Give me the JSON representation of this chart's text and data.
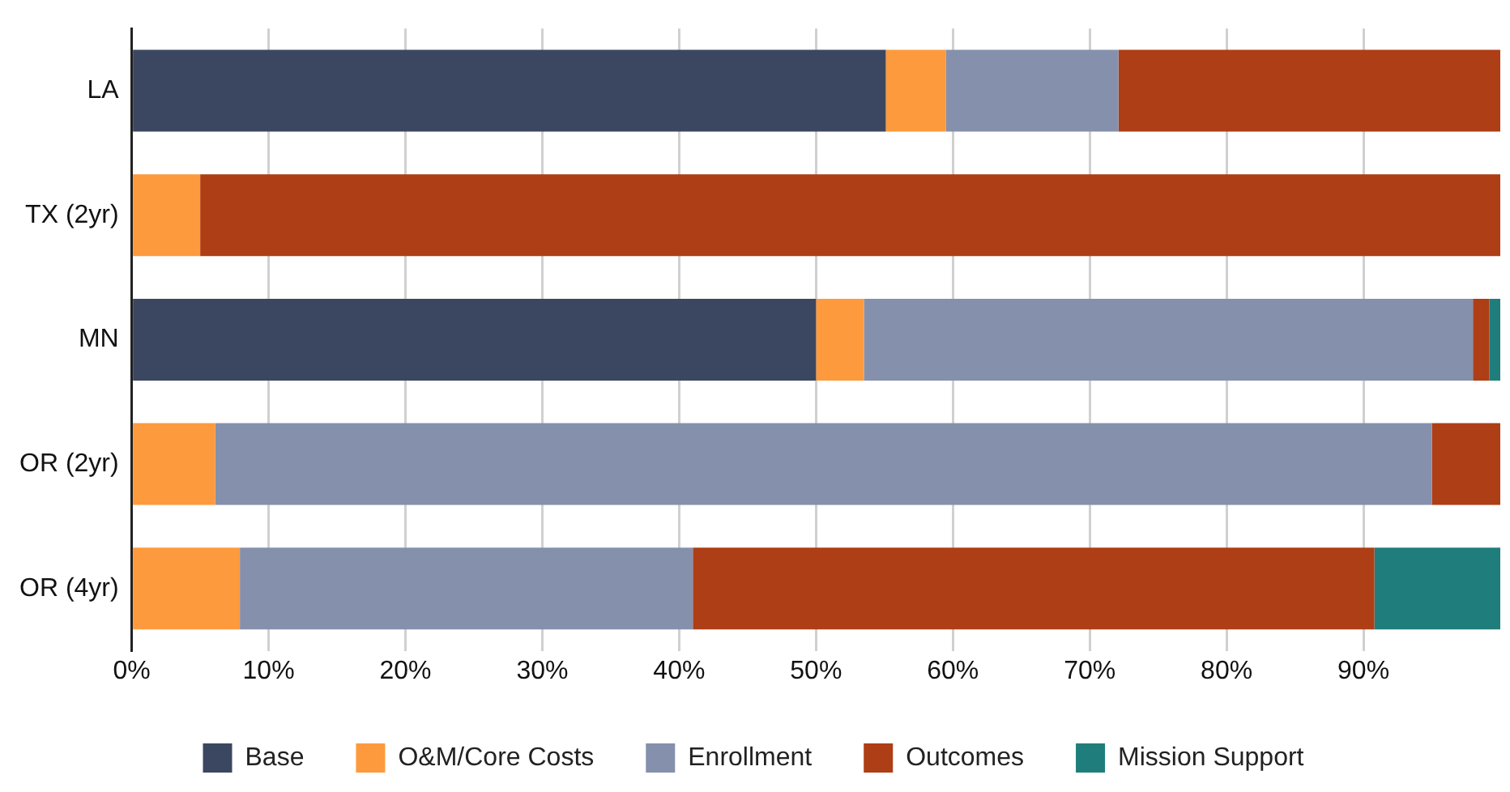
{
  "chart_data": {
    "type": "bar",
    "orientation": "horizontal",
    "stacked": true,
    "categories": [
      "LA",
      "TX (2yr)",
      "MN",
      "OR (2yr)",
      "OR (4yr)"
    ],
    "series": [
      {
        "name": "Base",
        "color": "#3b4760",
        "values": [
          55.1,
          0,
          50.0,
          0,
          0
        ]
      },
      {
        "name": "O&M/Core Costs",
        "color": "#fd9a3d",
        "values": [
          4.4,
          5.0,
          3.5,
          6.1,
          7.9
        ]
      },
      {
        "name": "Enrollment",
        "color": "#8590ac",
        "values": [
          12.6,
          0,
          44.5,
          88.9,
          33.1
        ]
      },
      {
        "name": "Outcomes",
        "color": "#ae3e15",
        "values": [
          27.9,
          95.0,
          1.2,
          5.0,
          49.8
        ]
      },
      {
        "name": "Mission Support",
        "color": "#1f7e7c",
        "values": [
          0,
          0,
          0.8,
          0,
          9.2
        ]
      }
    ],
    "xlim": [
      0,
      100
    ],
    "xticks": [
      {
        "value": 0,
        "label": "0%"
      },
      {
        "value": 10,
        "label": "10%"
      },
      {
        "value": 20,
        "label": "20%"
      },
      {
        "value": 30,
        "label": "30%"
      },
      {
        "value": 40,
        "label": "40%"
      },
      {
        "value": 50,
        "label": "50%"
      },
      {
        "value": 60,
        "label": "60%"
      },
      {
        "value": 70,
        "label": "70%"
      },
      {
        "value": 80,
        "label": "80%"
      },
      {
        "value": 90,
        "label": "90%"
      }
    ],
    "grid": "x",
    "legend": "bottom"
  }
}
